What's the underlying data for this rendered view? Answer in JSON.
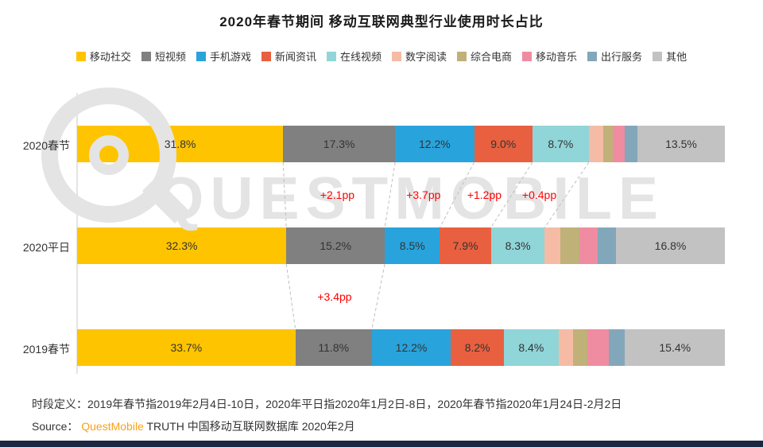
{
  "title": "2020年春节期间 移动互联网典型行业使用时长占比",
  "watermark": {
    "text": "QUESTMOBILE"
  },
  "chart_data": {
    "type": "bar",
    "orientation": "horizontal-stacked",
    "unit": "%",
    "x_range": [
      0,
      100
    ],
    "categories": [
      "2020春节",
      "2020平日",
      "2019春节"
    ],
    "legend": [
      {
        "label": "移动社交",
        "color": "#FFC400"
      },
      {
        "label": "短视频",
        "color": "#808080"
      },
      {
        "label": "手机游戏",
        "color": "#29A3DC"
      },
      {
        "label": "新闻资讯",
        "color": "#E8603F"
      },
      {
        "label": "在线视频",
        "color": "#90D5D8"
      },
      {
        "label": "数字阅读",
        "color": "#F5BBA5"
      },
      {
        "label": "综合电商",
        "color": "#BFB178"
      },
      {
        "label": "移动音乐",
        "color": "#EF8CA1"
      },
      {
        "label": "出行服务",
        "color": "#82A7BA"
      },
      {
        "label": "其他",
        "color": "#C2C2C2"
      }
    ],
    "series": [
      {
        "name": "2020春节",
        "values": [
          31.8,
          17.3,
          12.2,
          9.0,
          8.7,
          2.2,
          1.5,
          1.8,
          2.0,
          13.5
        ],
        "labels": [
          "31.8%",
          "17.3%",
          "12.2%",
          "9.0%",
          "8.7%",
          "",
          "",
          "",
          "",
          "13.5%"
        ]
      },
      {
        "name": "2020平日",
        "values": [
          32.3,
          15.2,
          8.5,
          7.9,
          8.3,
          2.4,
          3.0,
          2.8,
          2.8,
          16.8
        ],
        "labels": [
          "32.3%",
          "15.2%",
          "8.5%",
          "7.9%",
          "8.3%",
          "",
          "",
          "",
          "",
          "16.8%"
        ]
      },
      {
        "name": "2019春节",
        "values": [
          33.7,
          11.8,
          12.2,
          8.2,
          8.4,
          2.3,
          2.2,
          3.3,
          2.5,
          15.4
        ],
        "labels": [
          "33.7%",
          "11.8%",
          "12.2%",
          "8.2%",
          "8.4%",
          "",
          "",
          "",
          "",
          "15.4%"
        ]
      }
    ],
    "connectors": [
      {
        "gap": 0,
        "boundaries": [
          1,
          2,
          3,
          4,
          5
        ]
      },
      {
        "gap": 1,
        "boundaries": [
          1,
          2
        ]
      }
    ],
    "annotations": [
      {
        "label": "+2.1pp",
        "gap": 0,
        "segment": 1
      },
      {
        "label": "+3.7pp",
        "gap": 0,
        "segment": 2
      },
      {
        "label": "+1.2pp",
        "gap": 0,
        "segment": 3
      },
      {
        "label": "+0.4pp",
        "gap": 0,
        "segment": 4
      },
      {
        "label": "+3.4pp",
        "gap": 1,
        "segment": 1
      }
    ],
    "annotation_color": "#FF0000"
  },
  "footer": {
    "definition": "时段定义：2019年春节指2019年2月4日-10日，2020年平日指2020年1月2日-8日，2020年春节指2020年1月24日-2月2日",
    "source_prefix": "Source：  ",
    "source_brand": "QuestMobile",
    "source_suffix": " TRUTH 中国移动互联网数据库 2020年2月",
    "brand_color": "#F9A11B"
  }
}
